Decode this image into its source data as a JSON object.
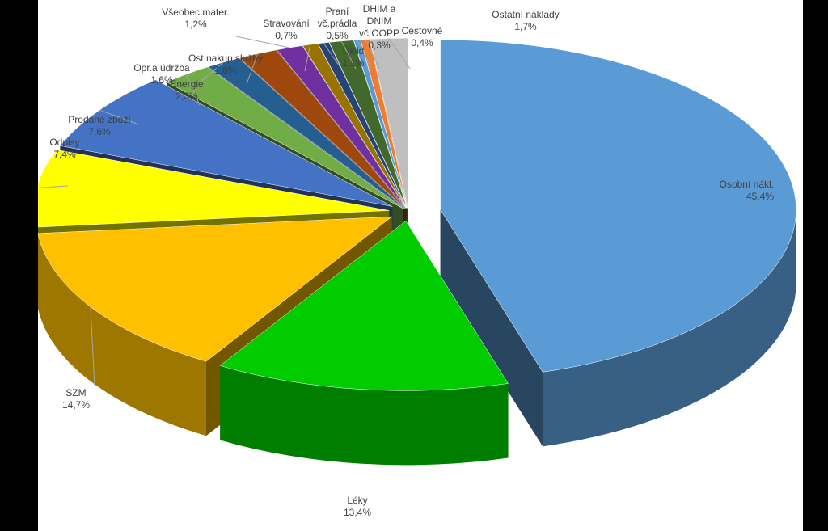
{
  "chart_data": {
    "type": "pie",
    "title": "",
    "style": "3d-exploded",
    "slices": [
      {
        "label": "Osobní nákl.",
        "value": 45.4,
        "value_text": "45,4%",
        "color": "#5B9BD5"
      },
      {
        "label": "Léky",
        "value": 13.4,
        "value_text": "13,4%",
        "color": "#00CC00"
      },
      {
        "label": "SZM",
        "value": 14.7,
        "value_text": "14,7%",
        "color": "#FFC000"
      },
      {
        "label": "Odpisy",
        "value": 7.4,
        "value_text": "7,4%",
        "color": "#FFFF00"
      },
      {
        "label": "Prodané zboží",
        "value": 7.6,
        "value_text": "7,6%",
        "color": "#4472C4"
      },
      {
        "label": "Energie",
        "value": 2.3,
        "value_text": "2,3%",
        "color": "#70AD47"
      },
      {
        "label": "Opr.a údržba",
        "value": 1.6,
        "value_text": "1,6%",
        "color": "#255E91"
      },
      {
        "label": "Ost.nakup.služby",
        "value": 1.8,
        "value_text": "1,8%",
        "color": "#9E480E"
      },
      {
        "label": "Všeobec.mater.",
        "value": 1.2,
        "value_text": "1,2%",
        "color": "#7030A0"
      },
      {
        "label": "Stravování",
        "value": 0.7,
        "value_text": "0,7%",
        "color": "#997300"
      },
      {
        "label": "Praní vč.prádla",
        "value": 0.5,
        "value_text": "0,5%",
        "color": "#264478"
      },
      {
        "label": "Úklid",
        "value": 1.1,
        "value_text": "1,1%",
        "color": "#43682B"
      },
      {
        "label": "DHIM a DNIM vč.OOPP",
        "value": 0.3,
        "value_text": "0,3%",
        "color": "#5B9BD5"
      },
      {
        "label": "Cestovné",
        "value": 0.4,
        "value_text": "0,4%",
        "color": "#ED7D31"
      },
      {
        "label": "Ostatní náklady",
        "value": 1.7,
        "value_text": "1,7%",
        "color": "#BFBFBF"
      }
    ]
  }
}
